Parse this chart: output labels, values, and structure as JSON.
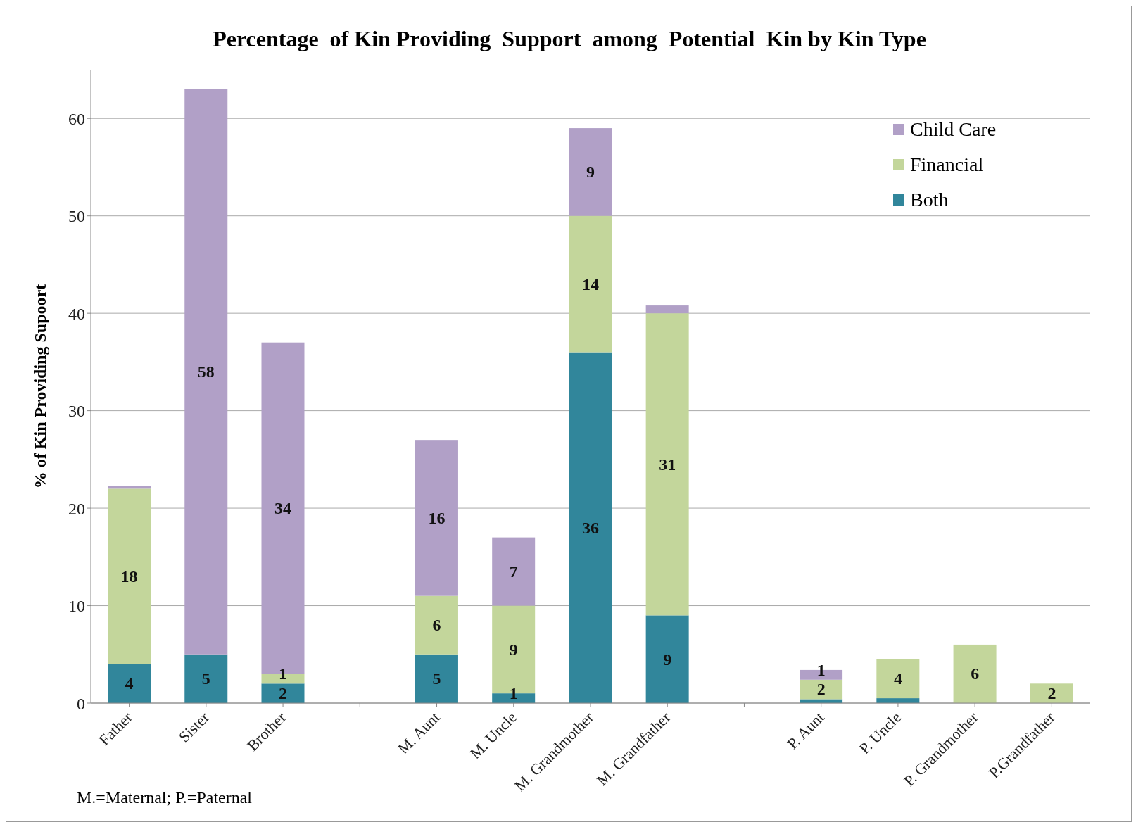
{
  "chart_data": {
    "type": "bar",
    "title": "Percentage  of Kin Providing  Support  among  Potential  Kin by Kin Type",
    "ylabel": "% of Kin Providing Supoort",
    "annotations": [
      "M.=Maternal; P.=Paternal"
    ],
    "categories": [
      "Father",
      "Sister",
      "Brother",
      null,
      "M. Aunt",
      "M. Uncle",
      "M. Grandmother",
      "M. Grandfather",
      null,
      "P. Aunt",
      "P. Uncle",
      "P. Grandmother",
      "P.Grandfather"
    ],
    "stacked": true,
    "ylim": [
      0,
      65
    ],
    "yticks": [
      0,
      10,
      20,
      30,
      40,
      50,
      60
    ],
    "grid": "y",
    "legend": "top right",
    "series": [
      {
        "name": "Both",
        "color": "#31869b",
        "values": [
          4,
          5,
          2,
          null,
          5,
          1,
          36,
          9,
          null,
          0.4,
          0.5,
          null,
          null
        ],
        "value_labels": [
          "4",
          "5",
          "2",
          null,
          "5",
          "1",
          "36",
          "9",
          null,
          null,
          null,
          null,
          null
        ]
      },
      {
        "name": "Financial",
        "color": "#c3d69b",
        "values": [
          18,
          null,
          1,
          null,
          6,
          9,
          14,
          31,
          null,
          2,
          4,
          6,
          2
        ],
        "value_labels": [
          "18",
          null,
          "1",
          null,
          "6",
          "9",
          "14",
          "31",
          null,
          "2",
          "4",
          "6",
          "2"
        ]
      },
      {
        "name": "Child Care",
        "color": "#b1a0c7",
        "values": [
          0.3,
          58,
          34,
          null,
          16,
          7,
          9,
          0.8,
          null,
          1,
          null,
          null,
          null
        ],
        "value_labels": [
          null,
          "58",
          "34",
          null,
          "16",
          "7",
          "9",
          null,
          null,
          "1",
          null,
          null,
          null
        ]
      }
    ]
  }
}
